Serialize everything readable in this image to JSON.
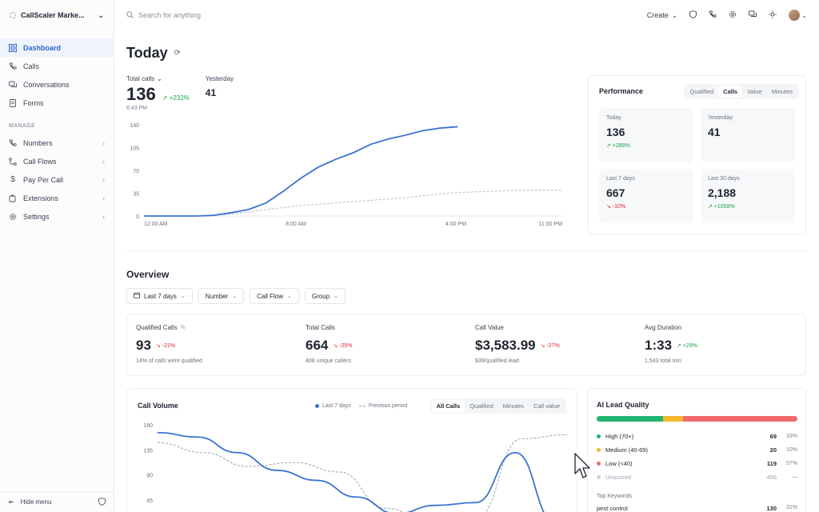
{
  "workspace": {
    "name": "CallScaler Marke..."
  },
  "sidebar": {
    "items": [
      {
        "label": "Dashboard",
        "icon": "grid-icon",
        "active": true
      },
      {
        "label": "Calls",
        "icon": "phone-icon"
      },
      {
        "label": "Conversations",
        "icon": "chat-icon"
      },
      {
        "label": "Forms",
        "icon": "form-icon"
      }
    ],
    "section_label": "MANAGE",
    "manage_items": [
      {
        "label": "Numbers",
        "icon": "phone-icon"
      },
      {
        "label": "Call Flows",
        "icon": "flow-icon"
      },
      {
        "label": "Pay Per Call",
        "icon": "dollar-icon"
      },
      {
        "label": "Extensions",
        "icon": "puzzle-icon"
      },
      {
        "label": "Settings",
        "icon": "gear-icon"
      }
    ],
    "hide_menu_label": "Hide menu"
  },
  "topbar": {
    "search_placeholder": "Search for anything",
    "create_label": "Create"
  },
  "today": {
    "title": "Today",
    "total_calls_label": "Total calls",
    "total_calls_value": "136",
    "total_calls_delta": "↗ +232%",
    "time": "6:43 PM",
    "yesterday_label": "Yesterday",
    "yesterday_value": "41"
  },
  "chart_data": {
    "type": "line",
    "y_ticks": [
      "140",
      "105",
      "70",
      "35",
      "0"
    ],
    "x_ticks": [
      "12:00 AM",
      "8:00 AM",
      "4:00 PM",
      "11:00 PM"
    ],
    "ylim": [
      0,
      140
    ],
    "series": [
      {
        "values": [
          0,
          0,
          0,
          0,
          1,
          5,
          10,
          20,
          38,
          58,
          75,
          87,
          97,
          110,
          118,
          124,
          131,
          135,
          137
        ]
      },
      {
        "values": [
          0,
          0,
          0,
          0,
          1,
          3,
          6,
          10,
          13,
          16,
          18,
          20,
          22,
          24,
          26,
          28,
          31,
          34,
          36,
          37,
          38,
          39,
          39.5,
          40,
          40
        ]
      }
    ]
  },
  "performance": {
    "title": "Performance",
    "tabs": [
      "Qualified",
      "Calls",
      "Value",
      "Minutes"
    ],
    "active_tab": "Calls",
    "tiles": [
      {
        "label": "Today",
        "value": "136",
        "delta": "↗ +289%",
        "dir": "up"
      },
      {
        "label": "Yesterday",
        "value": "41",
        "delta": "",
        "dir": ""
      },
      {
        "label": "Last 7 days",
        "value": "667",
        "delta": "↘ -10%",
        "dir": "down"
      },
      {
        "label": "Last 30 days",
        "value": "2,188",
        "delta": "↗ +1058%",
        "dir": "up"
      }
    ]
  },
  "overview": {
    "title": "Overview",
    "filters": [
      "Last 7 days",
      "Number",
      "Call Flow",
      "Group"
    ],
    "kpis": [
      {
        "label": "Qualified Calls",
        "value": "93",
        "delta": "↘ -21%",
        "dir": "down",
        "sub": "14% of calls were qualified"
      },
      {
        "label": "Total Calls",
        "value": "664",
        "delta": "↘ -25%",
        "dir": "down",
        "sub": "408 unique callers"
      },
      {
        "label": "Call Value",
        "value": "$3,583.99",
        "delta": "↘ -27%",
        "dir": "down",
        "sub": "$39/qualified lead"
      },
      {
        "label": "Avg Duration",
        "value": "1:33",
        "delta": "↗ +29%",
        "dir": "up",
        "sub": "1,543 total min"
      }
    ]
  },
  "call_volume": {
    "title": "Call Volume",
    "legend_current": "Last 7 days",
    "legend_previous": "Previous period",
    "tabs": [
      "All Calls",
      "Qualified",
      "Minutes",
      "Call value"
    ],
    "active_tab": "All Calls",
    "chart_data": {
      "type": "line",
      "y_ticks": [
        "180",
        "135",
        "90",
        "45"
      ],
      "ylim": [
        0,
        180
      ],
      "series": [
        {
          "name": "Last 7 days",
          "values": [
            166,
            158,
            130,
            98,
            80,
            50,
            20,
            35,
            40,
            130,
            5
          ]
        },
        {
          "name": "Previous period",
          "values": [
            148,
            130,
            105,
            112,
            95,
            30,
            5,
            12,
            155,
            162
          ]
        }
      ]
    }
  },
  "lead_quality": {
    "title": "AI Lead Quality",
    "bar": [
      {
        "pct": 33,
        "color": "#22b573"
      },
      {
        "pct": 10,
        "color": "#f5b82e"
      },
      {
        "pct": 57,
        "color": "#f06b6b"
      }
    ],
    "rows": [
      {
        "label": "High (70+)",
        "count": "69",
        "pct": "33%",
        "color": "#22b573"
      },
      {
        "label": "Medium (40-69)",
        "count": "20",
        "pct": "10%",
        "color": "#f5b82e"
      },
      {
        "label": "Low (<40)",
        "count": "119",
        "pct": "57%",
        "color": "#f06b6b"
      },
      {
        "label": "Unscored",
        "count": "456",
        "pct": "—",
        "color": "#d1d5db",
        "muted": true
      }
    ],
    "keywords_label": "Top Keywords",
    "keyword": {
      "label": "pest control",
      "count": "130",
      "pct": "31%"
    }
  }
}
